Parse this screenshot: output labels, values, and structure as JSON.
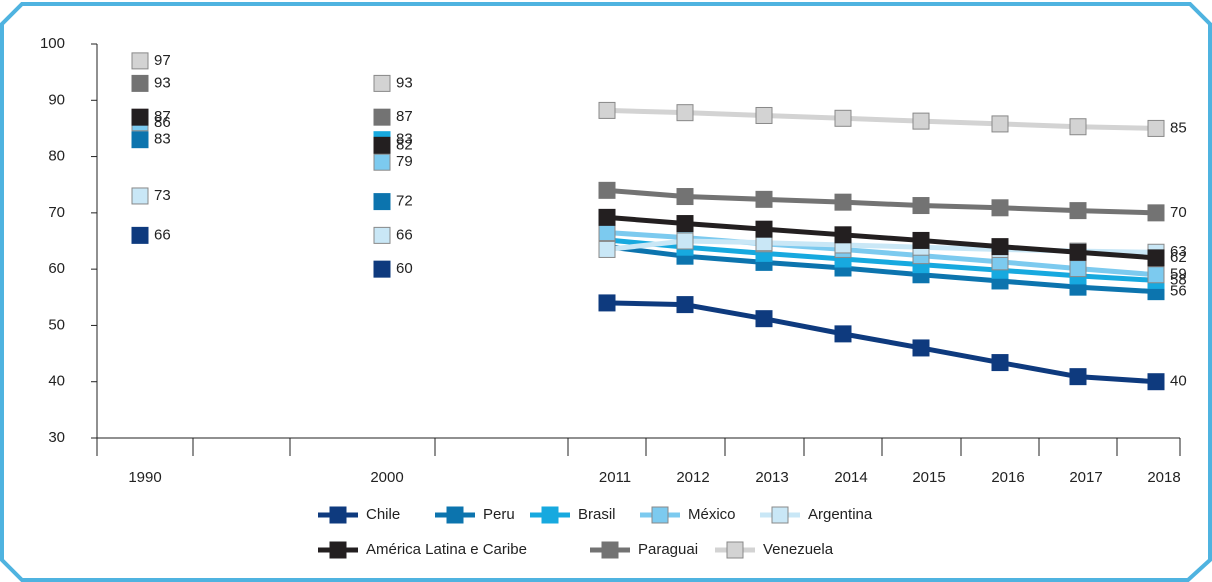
{
  "chart_data": {
    "type": "line",
    "categories": [
      "1990",
      null,
      "2000",
      null,
      "2011",
      "2012",
      "2013",
      "2014",
      "2015",
      "2016",
      "2017",
      "2018"
    ],
    "ylim": [
      30,
      100
    ],
    "yticks": [
      30,
      40,
      50,
      60,
      70,
      80,
      90,
      100
    ],
    "grid": false,
    "legend": "bottom",
    "series": [
      {
        "name": "Chile",
        "color": "#0e3a7e",
        "values": [
          66,
          null,
          60,
          null,
          54,
          53.7,
          51.2,
          48.5,
          46,
          43.4,
          40.9,
          40
        ]
      },
      {
        "name": "Peru",
        "color": "#0c74ae",
        "values": [
          83,
          null,
          72,
          null,
          64,
          62.3,
          61.2,
          60.2,
          59,
          57.9,
          56.8,
          56
        ]
      },
      {
        "name": "Brasil",
        "color": "#17a9df",
        "values": [
          null,
          null,
          83,
          null,
          65.2,
          63.9,
          62.8,
          61.8,
          60.8,
          59.8,
          58.8,
          58
        ]
      },
      {
        "name": "México",
        "color": "#7ccaef",
        "values": [
          86,
          null,
          79,
          null,
          66.5,
          65.6,
          64.5,
          63.5,
          62.4,
          61.3,
          60.1,
          59
        ]
      },
      {
        "name": "Argentina",
        "color": "#c9e7f6",
        "values": [
          73,
          null,
          66,
          null,
          63.5,
          65,
          64.7,
          64.3,
          63.9,
          63.5,
          63.2,
          63
        ]
      },
      {
        "name": "América Latina e Caribe",
        "color": "#231f20",
        "values": [
          87,
          null,
          82,
          null,
          69.2,
          68.1,
          67.1,
          66.1,
          65.1,
          64,
          63,
          62
        ]
      },
      {
        "name": "Paraguai",
        "color": "#737373",
        "values": [
          93,
          null,
          87,
          null,
          74,
          72.9,
          72.4,
          71.9,
          71.3,
          70.9,
          70.4,
          70
        ]
      },
      {
        "name": "Venezuela",
        "color": "#d3d3d3",
        "values": [
          97,
          null,
          93,
          null,
          88.2,
          87.8,
          87.3,
          86.8,
          86.3,
          85.8,
          85.3,
          85
        ]
      }
    ]
  }
}
